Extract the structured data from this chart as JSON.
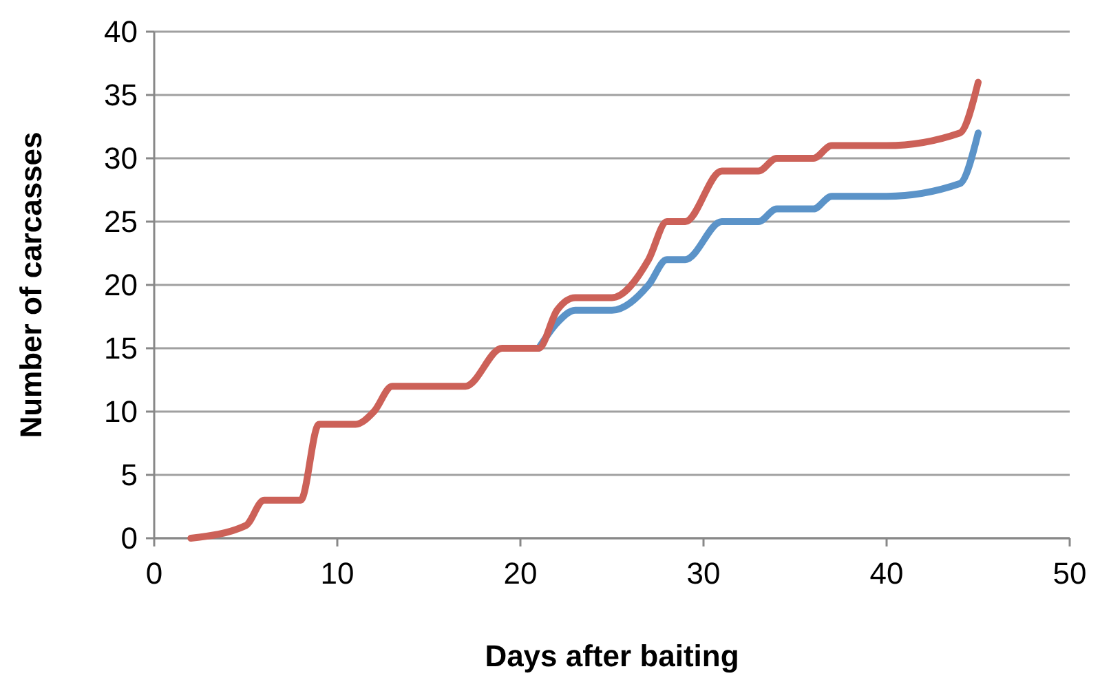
{
  "chart_data": {
    "type": "line",
    "xlabel": "Days after baiting",
    "ylabel": "Number of carcasses",
    "xlim": [
      0,
      50
    ],
    "xticks": [
      0,
      10,
      20,
      30,
      40,
      50
    ],
    "ylim": [
      0,
      40
    ],
    "yticks": [
      0,
      5,
      10,
      15,
      20,
      25,
      30,
      35,
      40
    ],
    "grid": "y",
    "marker": "none",
    "line_style": "solid",
    "series": [
      {
        "color": "#5b93c8",
        "x": [
          21,
          22,
          23,
          25,
          27,
          28,
          29,
          31,
          33,
          34,
          36,
          37,
          40,
          44,
          45
        ],
        "values": [
          15,
          17,
          18,
          18,
          20,
          22,
          22,
          25,
          25,
          26,
          26,
          27,
          27,
          28,
          32
        ]
      },
      {
        "color": "#cc6158",
        "x": [
          2,
          5,
          6,
          8,
          9,
          11,
          12,
          13,
          17,
          19,
          21,
          22,
          23,
          25,
          27,
          28,
          29,
          31,
          33,
          34,
          36,
          37,
          40,
          44,
          45
        ],
        "values": [
          0,
          1,
          3,
          3,
          9,
          9,
          10,
          12,
          12,
          15,
          15,
          18,
          19,
          19,
          22,
          25,
          25,
          29,
          29,
          30,
          30,
          31,
          31,
          32,
          36
        ]
      }
    ]
  }
}
